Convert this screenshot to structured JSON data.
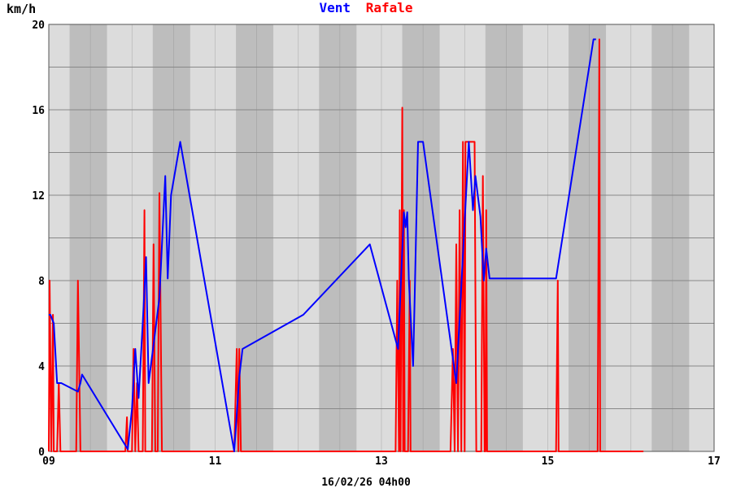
{
  "chart_data": {
    "type": "line",
    "ylabel": "km/h",
    "xlabel": "16/02/26 04h00",
    "ylim": [
      0,
      20
    ],
    "xlim": [
      9,
      17
    ],
    "y_ticks": [
      0,
      4,
      8,
      12,
      16,
      20
    ],
    "x_ticks": [
      9,
      11,
      13,
      15,
      17
    ],
    "x_tick_labels": [
      "09",
      "11",
      "13",
      "15",
      "17"
    ],
    "grid": true,
    "legend_position": "top-center",
    "colors": {
      "Vent": "#0000ff",
      "Rafale": "#ff0000",
      "band_dark": "#bdbdbd",
      "band_light": "#dcdcdc",
      "grid": "#888888"
    },
    "series": [
      {
        "name": "Vent",
        "x": [
          9.0,
          9.02,
          9.06,
          9.1,
          9.15,
          9.35,
          9.38,
          9.4,
          9.95,
          10.0,
          10.04,
          10.08,
          10.13,
          10.17,
          10.2,
          10.26,
          10.33,
          10.4,
          10.43,
          10.47,
          10.58,
          11.23,
          11.29,
          11.33,
          12.06,
          12.86,
          13.2,
          13.27,
          13.29,
          13.31,
          13.33,
          13.38,
          13.4,
          13.44,
          13.5,
          13.9,
          14.05,
          14.1,
          14.13,
          14.19,
          14.23,
          14.26,
          14.3,
          15.0,
          15.1,
          15.55,
          15.58
        ],
        "values": [
          6.4,
          6.4,
          6.0,
          3.2,
          3.2,
          2.8,
          3.2,
          3.6,
          0.1,
          2.0,
          4.8,
          2.5,
          6.0,
          9.1,
          3.2,
          5.0,
          7.2,
          12.9,
          8.1,
          12.0,
          14.5,
          0.0,
          3.5,
          4.8,
          6.4,
          9.7,
          4.8,
          11.2,
          10.5,
          11.2,
          8.0,
          4.0,
          7.3,
          14.5,
          14.5,
          3.2,
          14.5,
          11.3,
          12.9,
          11.0,
          8.0,
          9.5,
          8.1,
          8.1,
          8.1,
          19.3,
          19.3
        ]
      },
      {
        "name": "Rafale",
        "x": [
          9.0,
          9.01,
          9.03,
          9.05,
          9.06,
          9.07,
          9.1,
          9.12,
          9.14,
          9.16,
          9.33,
          9.35,
          9.38,
          9.4,
          9.92,
          9.94,
          9.95,
          9.96,
          10.0,
          10.02,
          10.04,
          10.06,
          10.08,
          10.1,
          10.13,
          10.15,
          10.16,
          10.17,
          10.19,
          10.2,
          10.24,
          10.26,
          10.28,
          10.29,
          10.31,
          10.33,
          10.36,
          10.38,
          10.4,
          10.42,
          10.44,
          11.23,
          11.26,
          11.28,
          11.29,
          11.31,
          11.32,
          11.33,
          11.35,
          13.17,
          13.19,
          13.21,
          13.22,
          13.23,
          13.25,
          13.26,
          13.27,
          13.28,
          13.29,
          13.3,
          13.31,
          13.32,
          13.34,
          13.35,
          13.37,
          13.38,
          13.39,
          13.4,
          13.42,
          13.44,
          13.83,
          13.86,
          13.88,
          13.9,
          13.92,
          13.94,
          13.96,
          13.98,
          14.0,
          14.01,
          14.02,
          14.03,
          14.04,
          14.05,
          14.08,
          14.1,
          14.12,
          14.14,
          14.15,
          14.17,
          14.2,
          14.22,
          14.24,
          14.25,
          14.26,
          14.27,
          14.28,
          14.29,
          14.31,
          15.1,
          15.12,
          15.13,
          15.14,
          15.16,
          15.6,
          15.62,
          15.63,
          15.64,
          15.66,
          16.15
        ],
        "values": [
          0,
          8,
          0,
          6.4,
          0,
          0,
          0,
          3.2,
          0,
          0,
          0,
          8,
          0,
          0,
          0,
          1.6,
          0,
          0,
          0,
          4.8,
          0,
          3.2,
          0,
          0,
          0,
          11.3,
          0,
          0,
          0,
          0,
          0,
          9.7,
          0,
          0,
          0,
          12.1,
          0,
          0,
          0,
          0,
          0,
          0,
          4.8,
          0,
          4.8,
          0,
          0,
          0,
          0,
          0,
          8,
          0,
          11.3,
          0,
          16.1,
          0,
          11.3,
          0,
          0,
          0,
          0,
          0,
          8,
          0,
          0,
          0,
          0,
          0,
          0,
          0,
          0,
          4.8,
          0,
          9.7,
          0,
          11.3,
          0,
          14.5,
          0,
          14.5,
          14.5,
          14.5,
          14.5,
          14.5,
          14.5,
          14.5,
          14.5,
          0,
          0,
          0,
          0,
          12.9,
          0,
          0,
          11.3,
          0,
          0,
          0,
          0,
          0,
          8,
          0,
          0,
          0,
          0,
          19.3,
          0,
          0,
          0,
          0
        ]
      }
    ]
  }
}
